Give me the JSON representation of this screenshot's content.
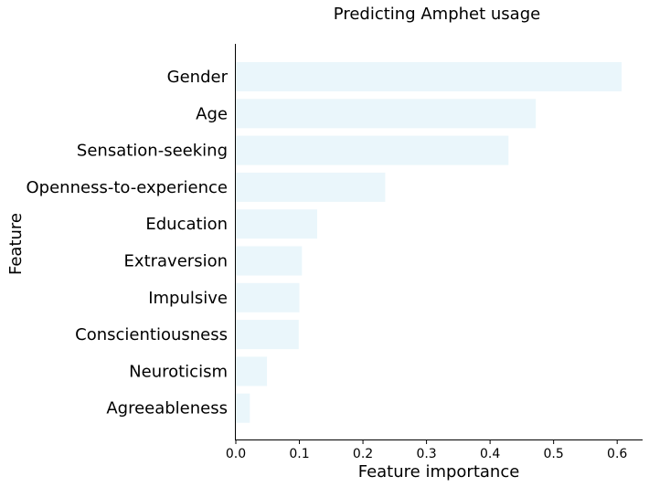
{
  "chart_data": {
    "type": "bar",
    "orientation": "horizontal",
    "title": "Predicting Amphet usage",
    "xlabel": "Feature importance",
    "ylabel": "Feature",
    "categories": [
      "Gender",
      "Age",
      "Sensation-seeking",
      "Openness-to-experience",
      "Education",
      "Extraversion",
      "Impulsive",
      "Conscientiousness",
      "Neuroticism",
      "Agreeableness"
    ],
    "values": [
      0.607,
      0.472,
      0.429,
      0.235,
      0.128,
      0.104,
      0.1,
      0.099,
      0.049,
      0.022
    ],
    "xlim": [
      0,
      0.64
    ],
    "xticks": [
      "0.0",
      "0.1",
      "0.2",
      "0.3",
      "0.4",
      "0.5",
      "0.6"
    ],
    "bar_color": "#eaf6fb",
    "grid": false
  }
}
